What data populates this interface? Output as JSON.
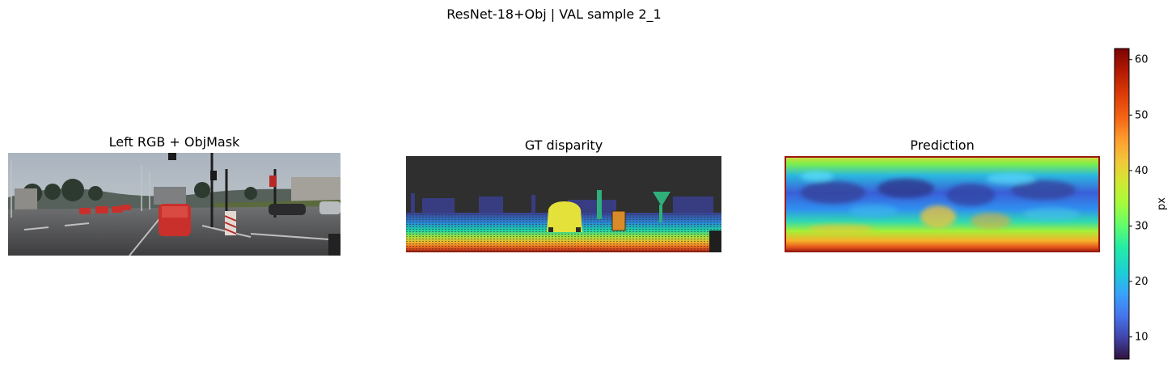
{
  "title": "ResNet-18+Obj | VAL sample 2_1",
  "panels": {
    "left": {
      "title": "Left RGB  +  ObjMask"
    },
    "gt": {
      "title": "GT disparity"
    },
    "pred": {
      "title": "Prediction"
    }
  },
  "chart_data": {
    "type": "heatmap",
    "colormap": "turbo",
    "colorbar": {
      "label": "px",
      "vmin": 6,
      "vmax": 62,
      "ticks": [
        10,
        20,
        30,
        40,
        50,
        60
      ],
      "tick_labels": [
        "10",
        "20",
        "30",
        "40",
        "50",
        "60"
      ]
    }
  }
}
